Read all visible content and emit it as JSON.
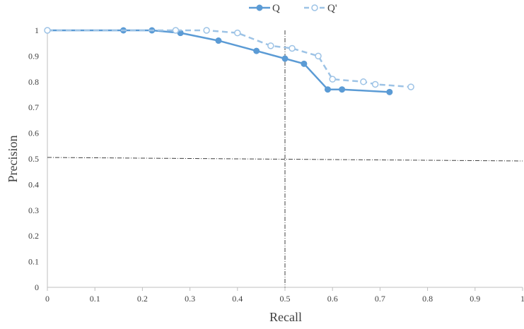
{
  "chart_data": {
    "type": "line",
    "title": "",
    "xlabel": "Recall",
    "ylabel": "Precision",
    "xlim": [
      0,
      1
    ],
    "ylim": [
      0,
      1
    ],
    "x_ticks": [
      "0",
      "0.1",
      "0.2",
      "0.3",
      "0.4",
      "0.5",
      "0.6",
      "0.7",
      "0.8",
      "0.9",
      "1"
    ],
    "y_ticks": [
      "0",
      "0.1",
      "0.2",
      "0.3",
      "0.4",
      "0.5",
      "0.6",
      "0.7",
      "0.8",
      "0.9",
      "1"
    ],
    "grid": false,
    "legend_position": "top-center",
    "reference_lines": [
      {
        "orientation": "vertical",
        "value": 0.5,
        "style": "dash-dot"
      },
      {
        "orientation": "horizontal",
        "value": 0.5,
        "style": "dash-dot"
      }
    ],
    "series": [
      {
        "name": "Q",
        "style": "solid",
        "marker": "filled-circle",
        "color": "#5b9bd5",
        "points": [
          [
            0,
            1.0
          ],
          [
            0.16,
            1.0
          ],
          [
            0.22,
            1.0
          ],
          [
            0.28,
            0.99
          ],
          [
            0.36,
            0.96
          ],
          [
            0.44,
            0.92
          ],
          [
            0.5,
            0.89
          ],
          [
            0.54,
            0.87
          ],
          [
            0.59,
            0.77
          ],
          [
            0.62,
            0.77
          ],
          [
            0.72,
            0.76
          ]
        ]
      },
      {
        "name": "Q'",
        "style": "dashed",
        "marker": "hollow-circle",
        "color": "#9dc3e6",
        "points": [
          [
            0,
            1.0
          ],
          [
            0.27,
            1.0
          ],
          [
            0.335,
            1.0
          ],
          [
            0.4,
            0.99
          ],
          [
            0.47,
            0.94
          ],
          [
            0.515,
            0.93
          ],
          [
            0.57,
            0.9
          ],
          [
            0.6,
            0.81
          ],
          [
            0.665,
            0.8
          ],
          [
            0.69,
            0.79
          ],
          [
            0.765,
            0.78
          ]
        ]
      }
    ]
  }
}
